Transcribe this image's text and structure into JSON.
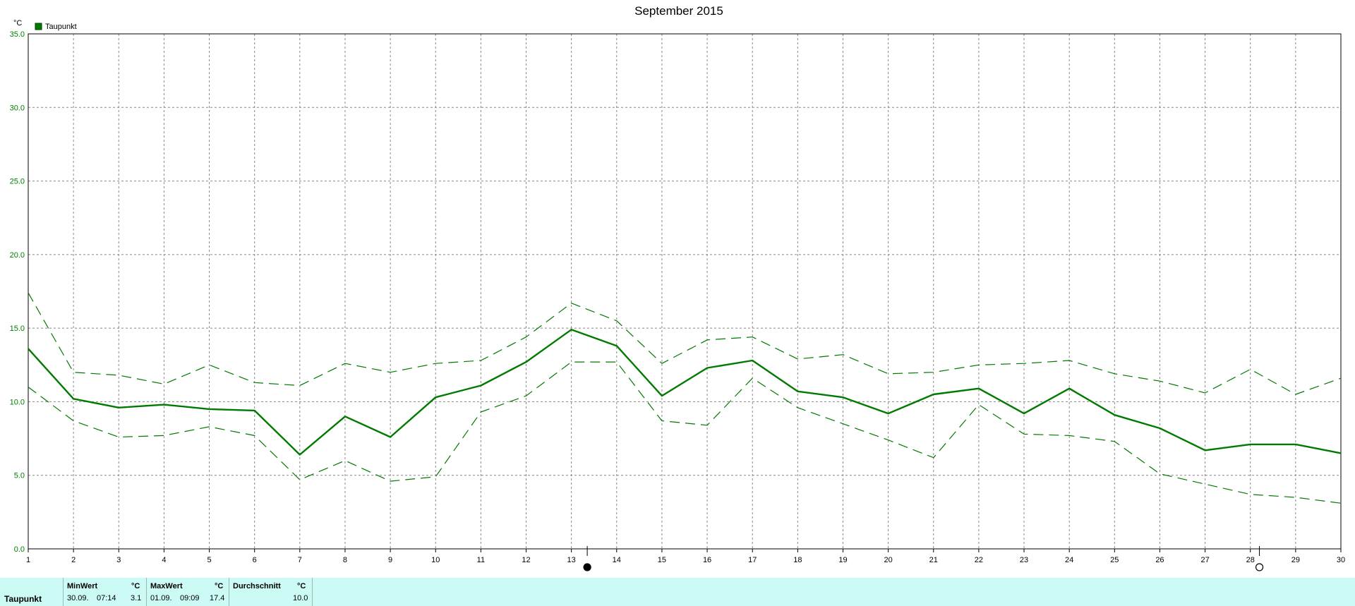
{
  "chart_data": {
    "type": "line",
    "title": "September 2015",
    "ylabel": "°C",
    "ylim": [
      0,
      35
    ],
    "yticks": [
      "0.0",
      "5.0",
      "10.0",
      "15.0",
      "20.0",
      "25.0",
      "30.0",
      "35.0"
    ],
    "x": [
      "1",
      "2",
      "3",
      "4",
      "5",
      "6",
      "7",
      "8",
      "9",
      "10",
      "11",
      "12",
      "13",
      "14",
      "15",
      "16",
      "17",
      "18",
      "19",
      "20",
      "21",
      "22",
      "23",
      "24",
      "25",
      "26",
      "27",
      "28",
      "29",
      "30"
    ],
    "grid": true,
    "legend": {
      "placement": "top-left",
      "entries": [
        "Taupunkt"
      ]
    },
    "series": [
      {
        "name": "Taupunkt",
        "style": "solid",
        "values": [
          13.6,
          10.2,
          9.6,
          9.8,
          9.5,
          9.4,
          6.4,
          9.0,
          7.6,
          10.3,
          11.1,
          12.7,
          14.9,
          13.8,
          10.4,
          12.3,
          12.8,
          10.7,
          10.3,
          9.2,
          10.5,
          10.9,
          9.2,
          10.9,
          9.1,
          8.2,
          6.7,
          7.1,
          7.1,
          6.5
        ]
      },
      {
        "style": "dashed",
        "values": [
          17.4,
          12.0,
          11.8,
          11.2,
          12.5,
          11.3,
          11.1,
          12.6,
          12.0,
          12.6,
          12.8,
          14.4,
          16.7,
          15.5,
          12.6,
          14.2,
          14.4,
          12.9,
          13.2,
          11.9,
          12.0,
          12.5,
          12.6,
          12.8,
          11.9,
          11.4,
          10.6,
          12.2,
          10.5,
          11.6
        ]
      },
      {
        "style": "dashed",
        "values": [
          11.0,
          8.7,
          7.6,
          7.7,
          8.3,
          7.7,
          4.7,
          6.0,
          4.6,
          4.9,
          9.3,
          10.4,
          12.7,
          12.7,
          8.7,
          8.4,
          11.6,
          9.6,
          8.5,
          7.4,
          6.2,
          9.8,
          7.8,
          7.7,
          7.3,
          5.1,
          4.4,
          3.7,
          3.5,
          3.1
        ]
      }
    ],
    "markers": [
      {
        "day": 13.35,
        "symbol": "new-moon"
      },
      {
        "day": 28.2,
        "symbol": "full-moon"
      }
    ]
  },
  "colors": {
    "series": "#007a00",
    "axis_text": "#008000",
    "grid": "#888888",
    "panel_bg": "#ccfaf5"
  },
  "stats": {
    "row_label": "Taupunkt",
    "min": {
      "header": "MinWert",
      "unit": "°C",
      "date": "30.09.",
      "time": "07:14",
      "value": "3.1"
    },
    "max": {
      "header": "MaxWert",
      "unit": "°C",
      "date": "01.09.",
      "time": "09:09",
      "value": "17.4"
    },
    "avg": {
      "header": "Durchschnitt",
      "unit": "°C",
      "value": "10.0"
    }
  }
}
